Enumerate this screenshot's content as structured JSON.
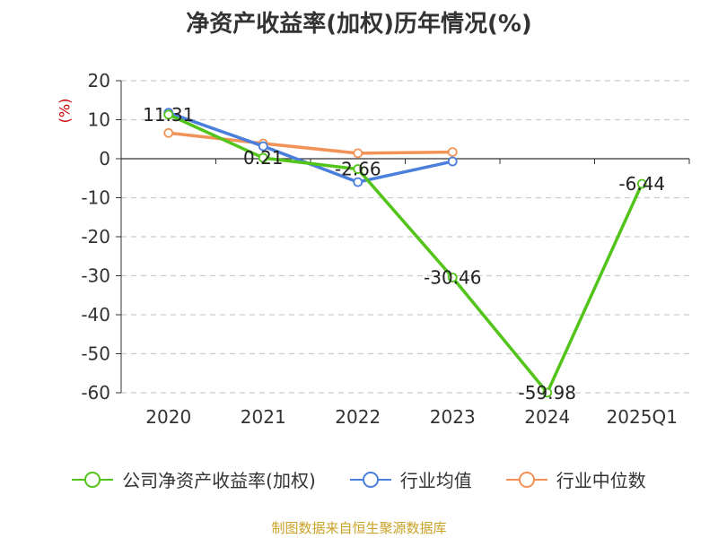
{
  "chart_data": {
    "type": "line",
    "title": "净资产收益率(加权)历年情况(%)",
    "ylabel": "(%)",
    "xlabel": "",
    "categories": [
      "2020",
      "2021",
      "2022",
      "2023",
      "2024",
      "2025Q1"
    ],
    "ylim": [
      -60,
      20
    ],
    "yticks": [
      20,
      10,
      0,
      -10,
      -20,
      -30,
      -40,
      -50,
      -60
    ],
    "grid": true,
    "legend_position": "bottom",
    "series": [
      {
        "name": "公司净资产收益率(加权)",
        "color": "#52c41a",
        "values": [
          11.31,
          0.21,
          -2.66,
          -30.46,
          -59.98,
          -6.44
        ],
        "labels": [
          "11.31",
          "0.21",
          "-2.66",
          "-30.46",
          "-59.98",
          "-6.44"
        ]
      },
      {
        "name": "行业均值",
        "color": "#4a7fdc",
        "values": [
          11.8,
          3.2,
          -6.0,
          -0.7,
          null,
          null
        ]
      },
      {
        "name": "行业中位数",
        "color": "#f39257",
        "values": [
          6.6,
          3.9,
          1.4,
          1.7,
          null,
          null
        ]
      }
    ]
  },
  "footer": "制图数据来自恒生聚源数据库"
}
